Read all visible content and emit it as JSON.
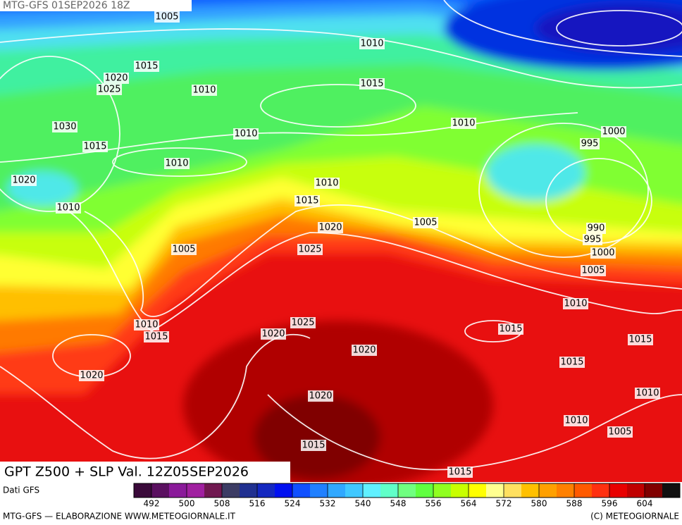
{
  "header": "MTG-GFS 01SEP2026 18Z",
  "title": "GPT Z500 + SLP Val. 12Z05SEP2026",
  "source": "Dati GFS",
  "footer_left": "MTG-GFS — ELABORAZIONE WWW.METEOGIORNALE.IT",
  "footer_right": "(C) METEOGIORNALE",
  "isobar_labels": [
    1005,
    1010,
    1015,
    1020,
    1025,
    1010,
    1015,
    1030,
    1010,
    1010,
    1000,
    995,
    1015,
    1010,
    1020,
    1010,
    1010,
    1015,
    1020,
    1005,
    990,
    995,
    1000,
    1005,
    1025,
    1005,
    1010,
    1010,
    1015,
    1025,
    1015,
    1020,
    1015,
    1020,
    1015,
    1020,
    1010,
    1020,
    1010,
    1005,
    1015,
    1015
  ],
  "colorbar": {
    "range": [
      488,
      612
    ],
    "ticks": [
      492,
      500,
      508,
      516,
      524,
      532,
      540,
      548,
      556,
      564,
      572,
      580,
      588,
      596,
      604
    ],
    "colors": [
      "#3a0a3a",
      "#5a1060",
      "#8a1a9a",
      "#a020a0",
      "#701850",
      "#3c3c64",
      "#203090",
      "#1428c0",
      "#0010f0",
      "#1050ff",
      "#2080ff",
      "#30a8ff",
      "#40c8ff",
      "#60f0ff",
      "#60ffc8",
      "#70ff80",
      "#60ff40",
      "#90ff20",
      "#c8ff00",
      "#ffff00",
      "#ffff90",
      "#ffe060",
      "#ffc000",
      "#ffa000",
      "#ff8000",
      "#ff5a00",
      "#ff3010",
      "#e80000",
      "#c00000",
      "#800000",
      "#101010"
    ]
  }
}
